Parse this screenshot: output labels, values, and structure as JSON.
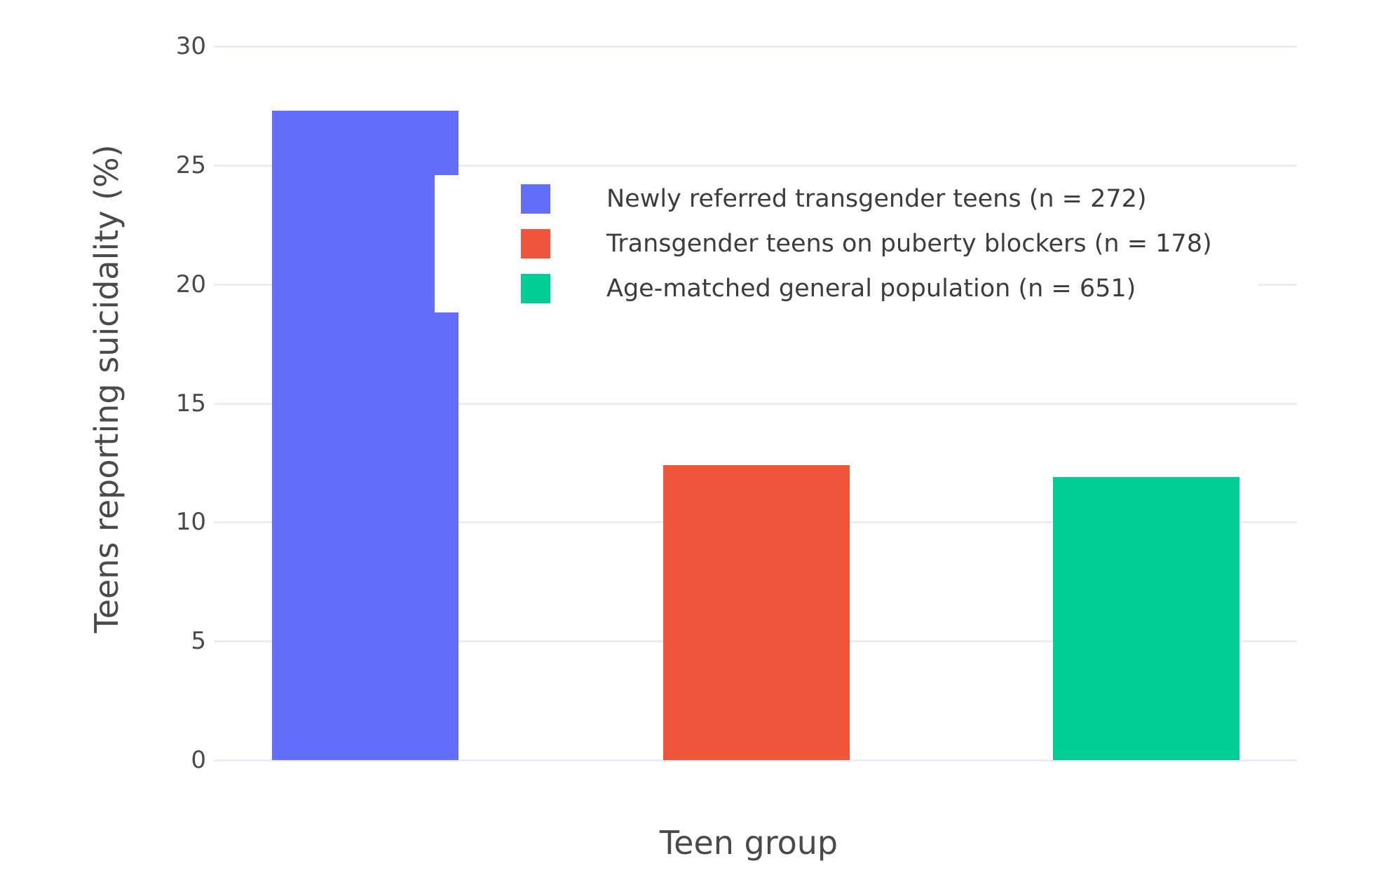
{
  "chart_data": {
    "type": "bar",
    "title": "",
    "xlabel": "Teen group",
    "ylabel": "Teens reporting suicidality (%)",
    "ylim": [
      0,
      30
    ],
    "yticks": [
      0,
      5,
      10,
      15,
      20,
      25,
      30
    ],
    "grid": true,
    "x_tick_labels": [],
    "legend_position": "inside-upper-center",
    "series": [
      {
        "name": "Newly referred transgender teens (n = 272)",
        "value": 27.3,
        "color": "#636EFA"
      },
      {
        "name": "Transgender teens on puberty blockers (n = 178)",
        "value": 12.4,
        "color": "#EF553B"
      },
      {
        "name": "Age-matched general population (n = 651)",
        "value": 11.9,
        "color": "#00CC96"
      }
    ],
    "colors": {
      "gridline": "#E9EDF5",
      "text": "#4a4a4a",
      "background": "#ffffff"
    }
  }
}
